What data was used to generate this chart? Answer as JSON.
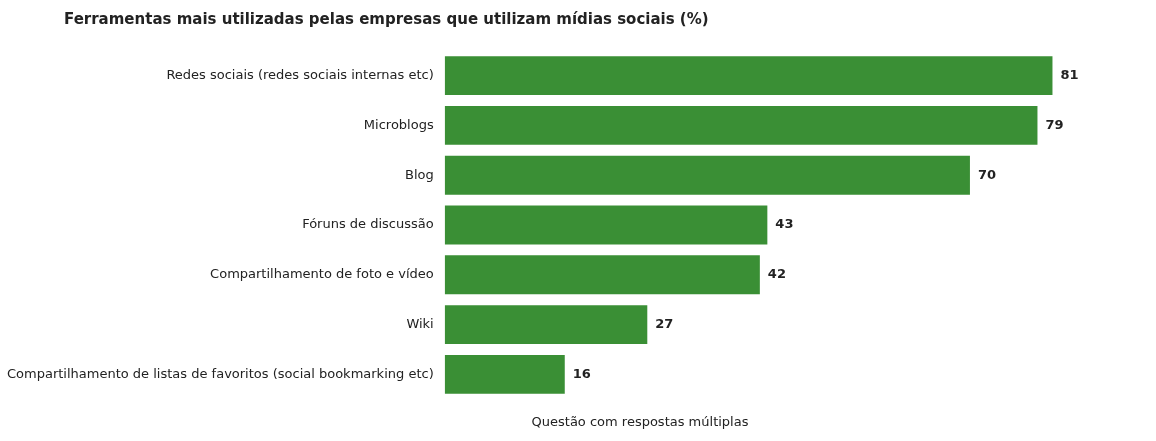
{
  "chart_data": {
    "type": "bar",
    "orientation": "horizontal",
    "title": "Ferramentas mais utilizadas pelas empresas que utilizam mídias sociais (%)",
    "categories": [
      "Redes sociais (redes sociais internas etc)",
      "Microblogs",
      "Blog",
      "Fóruns de discussão",
      "Compartilhamento de foto e vídeo",
      "Wiki",
      "Compartilhamento de listas de favoritos (social bookmarking etc)"
    ],
    "values": [
      81,
      79,
      70,
      43,
      42,
      27,
      16
    ],
    "color": "#3a8f35",
    "data_labels": true,
    "legend": false,
    "tick_labels": "y",
    "annotations": [
      "Questão com respostas múltiplas"
    ]
  }
}
